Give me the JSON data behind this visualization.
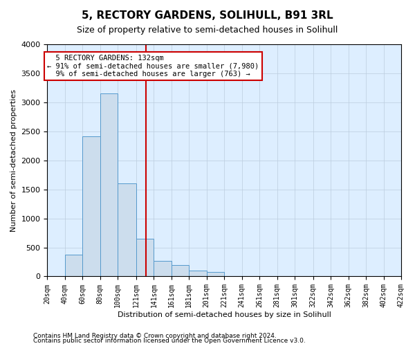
{
  "title": "5, RECTORY GARDENS, SOLIHULL, B91 3RL",
  "subtitle": "Size of property relative to semi-detached houses in Solihull",
  "xlabel": "Distribution of semi-detached houses by size in Solihull",
  "ylabel": "Number of semi-detached properties",
  "footnote1": "Contains HM Land Registry data © Crown copyright and database right 2024.",
  "footnote2": "Contains public sector information licensed under the Open Government Licence v3.0.",
  "bar_color": "#ccdded",
  "bar_edge_color": "#5599cc",
  "bg_color": "#ddeeff",
  "annotation_text": "  5 RECTORY GARDENS: 132sqm\n← 91% of semi-detached houses are smaller (7,980)\n  9% of semi-detached houses are larger (763) →",
  "property_size": 132,
  "bins": [
    20,
    40,
    60,
    80,
    100,
    121,
    141,
    161,
    181,
    201,
    221,
    241,
    261,
    281,
    301,
    322,
    342,
    362,
    382,
    402,
    422
  ],
  "counts": [
    0,
    370,
    2420,
    3150,
    1600,
    650,
    270,
    200,
    100,
    75,
    0,
    0,
    0,
    0,
    0,
    0,
    0,
    0,
    0,
    0
  ],
  "tick_labels": [
    "20sqm",
    "40sqm",
    "60sqm",
    "80sqm",
    "100sqm",
    "121sqm",
    "141sqm",
    "161sqm",
    "181sqm",
    "201sqm",
    "221sqm",
    "241sqm",
    "261sqm",
    "281sqm",
    "301sqm",
    "322sqm",
    "342sqm",
    "362sqm",
    "382sqm",
    "402sqm",
    "422sqm"
  ],
  "ylim": [
    0,
    4000
  ],
  "yticks": [
    0,
    500,
    1000,
    1500,
    2000,
    2500,
    3000,
    3500,
    4000
  ],
  "grid_color": "#bbccdd",
  "red_line_color": "#cc0000",
  "annotation_box_color": "#cc0000",
  "title_fontsize": 11,
  "subtitle_fontsize": 9,
  "ylabel_fontsize": 8,
  "xlabel_fontsize": 8,
  "tick_fontsize": 7,
  "footnote_fontsize": 6.5
}
